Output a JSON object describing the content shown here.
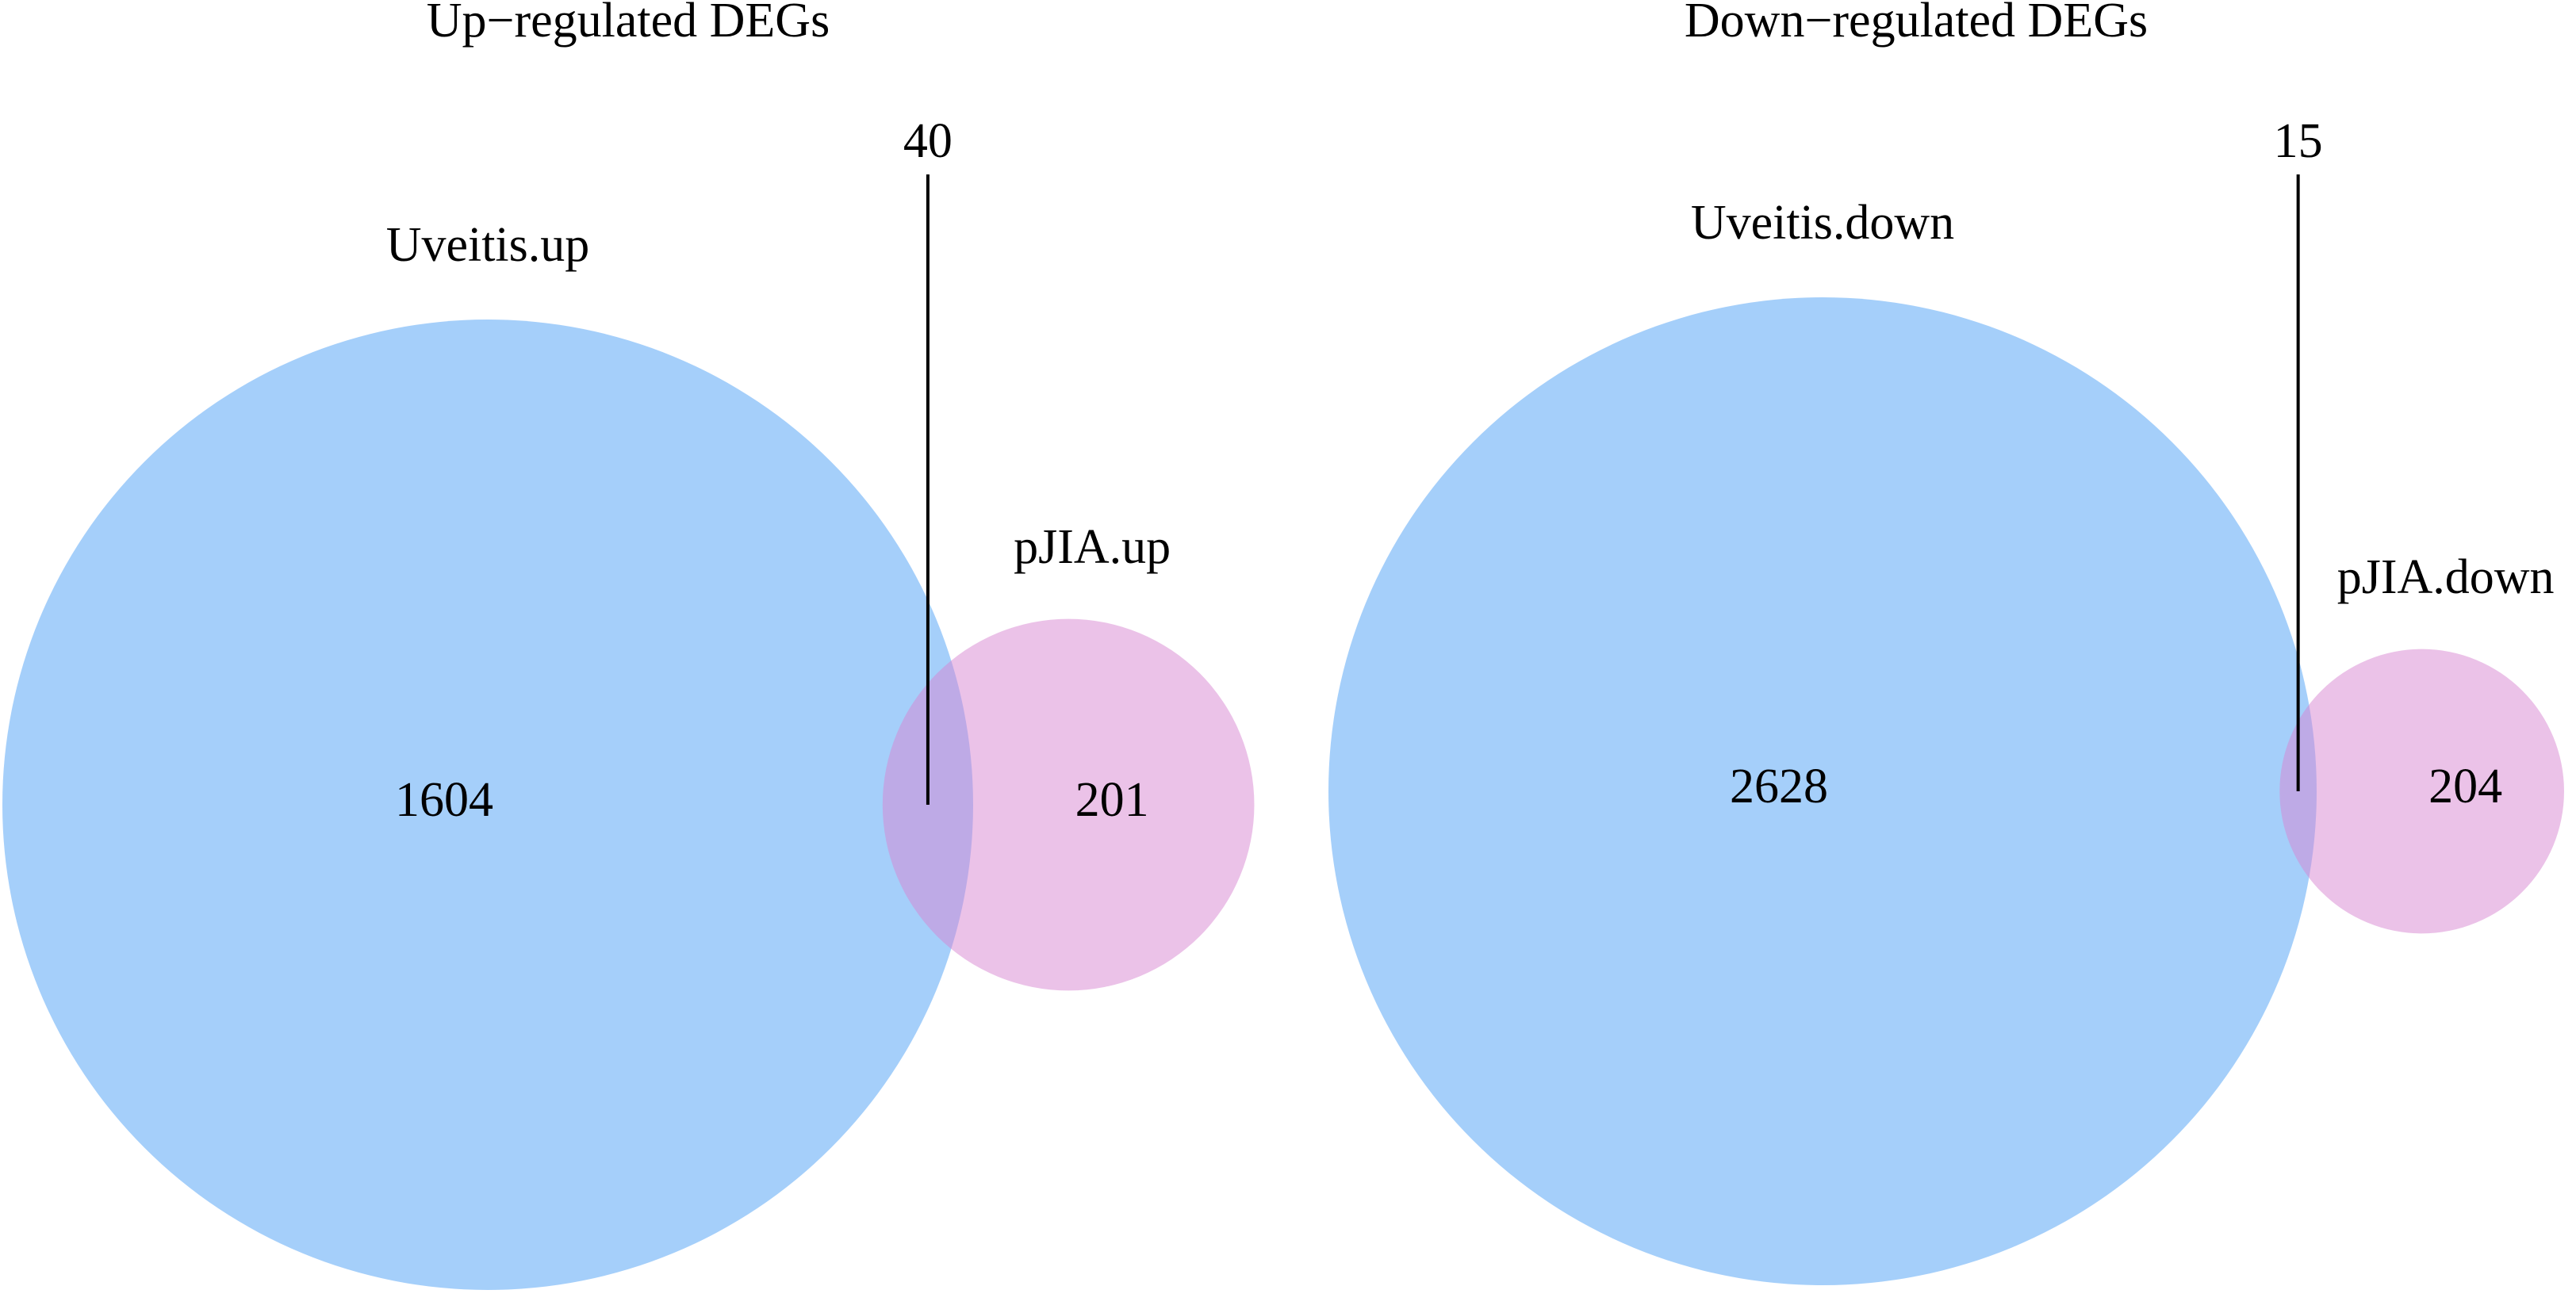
{
  "chart_data": [
    {
      "type": "venn",
      "title": "Up−regulated DEGs",
      "sets": [
        {
          "name": "Uveitis.up",
          "color": "#4ca0f5"
        },
        {
          "name": "pJIA.up",
          "color": "#d885d1"
        }
      ],
      "values": [
        1604,
        40,
        201
      ]
    },
    {
      "type": "venn",
      "title": "Down−regulated DEGs",
      "sets": [
        {
          "name": "Uveitis.down",
          "color": "#4ca0f5"
        },
        {
          "name": "pJIA.down",
          "color": "#d885d1"
        }
      ],
      "values": [
        2628,
        15,
        204
      ]
    }
  ]
}
